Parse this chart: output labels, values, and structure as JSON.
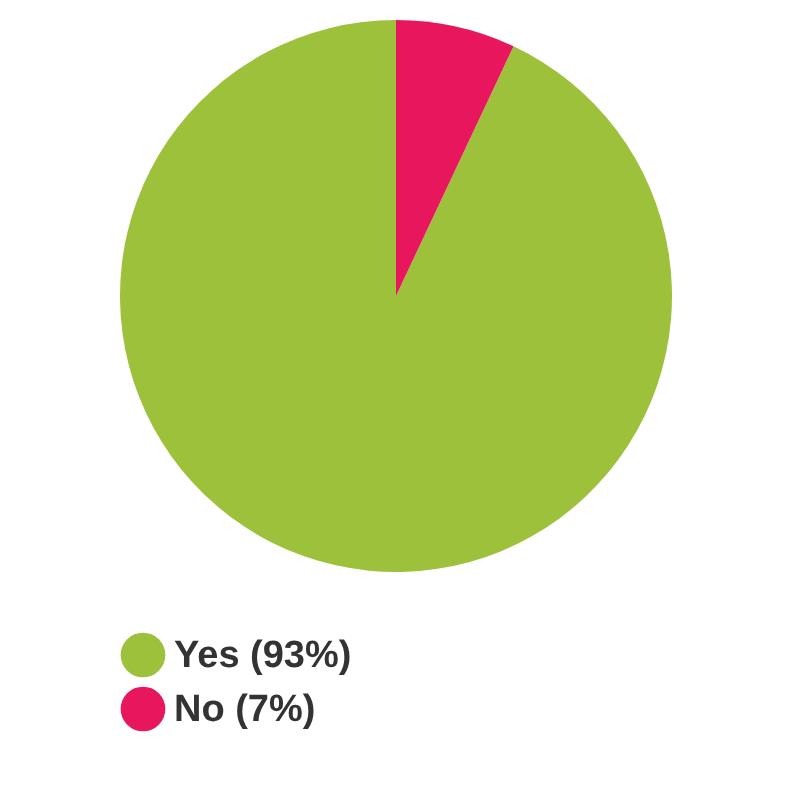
{
  "chart_data": {
    "type": "pie",
    "categories": [
      "Yes",
      "No"
    ],
    "values": [
      93,
      7
    ],
    "colors": [
      "#9dc13b",
      "#e8175d"
    ],
    "value_labels": [
      "(93%)",
      "(7%)"
    ],
    "legend": "bottom"
  }
}
